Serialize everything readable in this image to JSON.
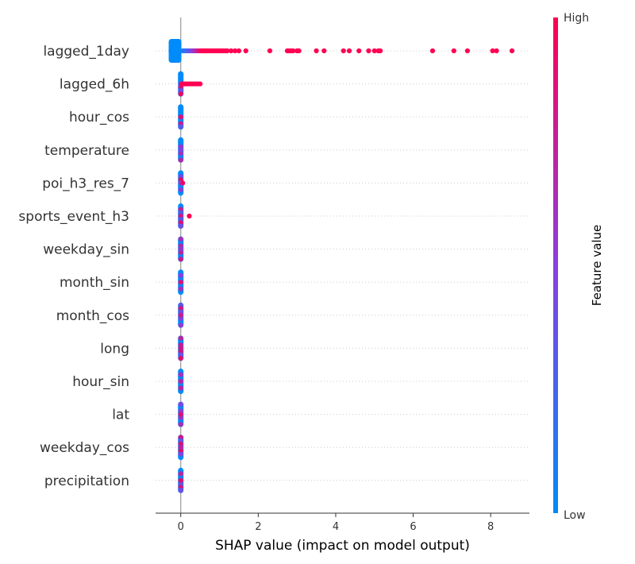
{
  "chart_data": {
    "type": "scatter",
    "subtype": "shap-beeswarm",
    "title": "",
    "xlabel": "SHAP value (impact on model output)",
    "xlim": [
      -0.65,
      9.0
    ],
    "xticks": [
      0,
      2,
      4,
      6,
      8
    ],
    "grid": false,
    "zero_line": true,
    "colorbar": {
      "title": "Feature value",
      "high_label": "High",
      "low_label": "Low",
      "low_color": "#008bfb",
      "high_color": "#ff0052"
    },
    "features": [
      {
        "name": "lagged_1day",
        "points": [
          [
            -0.25,
            0.0
          ],
          [
            -0.2,
            0.0
          ],
          [
            -0.15,
            0.0
          ],
          [
            -0.1,
            0.0
          ],
          [
            -0.05,
            0.0
          ],
          [
            0.0,
            0.0
          ],
          [
            0.05,
            0.1
          ],
          [
            0.1,
            0.15
          ],
          [
            0.15,
            0.2
          ],
          [
            0.2,
            0.3
          ],
          [
            0.25,
            0.4
          ],
          [
            0.3,
            0.5
          ],
          [
            0.35,
            0.6
          ],
          [
            0.4,
            0.7
          ],
          [
            0.45,
            0.8
          ],
          [
            0.5,
            0.9
          ],
          [
            0.55,
            1
          ],
          [
            0.6,
            1
          ],
          [
            0.65,
            1
          ],
          [
            0.7,
            1
          ],
          [
            0.75,
            1
          ],
          [
            0.8,
            1
          ],
          [
            0.85,
            1
          ],
          [
            0.9,
            1
          ],
          [
            0.95,
            1
          ],
          [
            1.0,
            1
          ],
          [
            1.05,
            1
          ],
          [
            1.1,
            1
          ],
          [
            1.15,
            1
          ],
          [
            1.2,
            1
          ],
          [
            1.3,
            1
          ],
          [
            1.4,
            1
          ],
          [
            1.5,
            1
          ],
          [
            1.68,
            1
          ],
          [
            2.3,
            1
          ],
          [
            2.75,
            1
          ],
          [
            2.8,
            1
          ],
          [
            2.85,
            1
          ],
          [
            2.9,
            1
          ],
          [
            3.0,
            1
          ],
          [
            3.05,
            1
          ],
          [
            3.5,
            1
          ],
          [
            3.7,
            1
          ],
          [
            4.2,
            1
          ],
          [
            4.35,
            1
          ],
          [
            4.6,
            1
          ],
          [
            4.85,
            1
          ],
          [
            5.0,
            1
          ],
          [
            5.1,
            1
          ],
          [
            5.15,
            1
          ],
          [
            6.5,
            1
          ],
          [
            7.05,
            1
          ],
          [
            7.4,
            1
          ],
          [
            8.05,
            1
          ],
          [
            8.15,
            1
          ],
          [
            8.55,
            1
          ]
        ]
      },
      {
        "name": "lagged_6h",
        "points": [
          [
            0.0,
            0.0
          ],
          [
            0.02,
            0.9
          ],
          [
            0.05,
            1
          ],
          [
            0.1,
            1
          ],
          [
            0.15,
            1
          ],
          [
            0.2,
            1
          ],
          [
            0.25,
            1
          ],
          [
            0.3,
            1
          ],
          [
            0.35,
            1
          ],
          [
            0.4,
            1
          ],
          [
            0.45,
            1
          ],
          [
            0.5,
            1
          ]
        ]
      },
      {
        "name": "hour_cos",
        "points": [
          [
            0.0,
            0.0
          ],
          [
            0.0,
            0.9
          ]
        ]
      },
      {
        "name": "temperature",
        "points": [
          [
            0.0,
            0.0
          ],
          [
            0.0,
            0.5
          ]
        ]
      },
      {
        "name": "poi_h3_res_7",
        "points": [
          [
            0.0,
            0.0
          ],
          [
            0.05,
            0.95
          ]
        ]
      },
      {
        "name": "sports_event_h3",
        "points": [
          [
            0.0,
            0.0
          ],
          [
            0.22,
            1
          ]
        ]
      },
      {
        "name": "weekday_sin",
        "points": [
          [
            0.0,
            0.0
          ],
          [
            0.0,
            0.6
          ]
        ]
      },
      {
        "name": "month_sin",
        "points": [
          [
            0.0,
            0.0
          ],
          [
            0.0,
            0.85
          ]
        ]
      },
      {
        "name": "month_cos",
        "points": [
          [
            0.0,
            0.0
          ],
          [
            0.0,
            0.8
          ]
        ]
      },
      {
        "name": "long",
        "points": [
          [
            0.0,
            0.0
          ],
          [
            0.0,
            0.85
          ]
        ]
      },
      {
        "name": "hour_sin",
        "points": [
          [
            0.0,
            0.0
          ],
          [
            0.0,
            0.7
          ]
        ]
      },
      {
        "name": "lat",
        "points": [
          [
            0.0,
            0.0
          ],
          [
            0.0,
            0.9
          ]
        ]
      },
      {
        "name": "weekday_cos",
        "points": [
          [
            0.0,
            0.0
          ],
          [
            0.0,
            0.75
          ]
        ]
      },
      {
        "name": "precipitation",
        "points": [
          [
            0.0,
            0.0
          ],
          [
            0.0,
            0.9
          ]
        ]
      }
    ]
  }
}
